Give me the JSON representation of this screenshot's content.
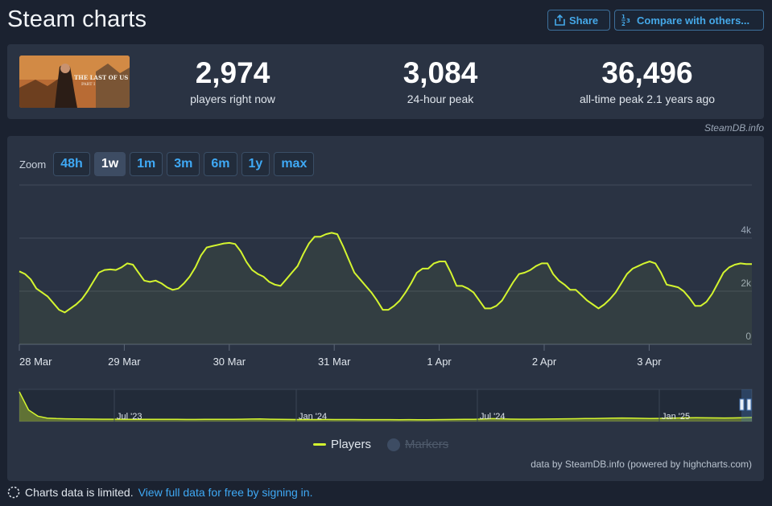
{
  "header": {
    "title": "Steam charts",
    "share_label": "Share",
    "compare_label": "Compare with others..."
  },
  "stats": [
    {
      "value": "2,974",
      "label": "players right now"
    },
    {
      "value": "3,084",
      "label": "24-hour peak"
    },
    {
      "value": "36,496",
      "label": "all-time peak 2.1 years ago"
    }
  ],
  "credit": "SteamDB.info",
  "zoom": {
    "label": "Zoom",
    "options": [
      "48h",
      "1w",
      "1m",
      "3m",
      "6m",
      "1y",
      "max"
    ],
    "active": "1w"
  },
  "legend": {
    "players": "Players",
    "markers": "Markers"
  },
  "powered_by": "data by SteamDB.info (powered by highcharts.com)",
  "footer": {
    "notice": "Charts data is limited.",
    "link": "View full data for free by signing in."
  },
  "colors": {
    "series": "#d4f52f",
    "accent": "#3fa9f5",
    "panel": "#2a3343",
    "background": "#1b2230"
  },
  "icons": {
    "share": "share-icon",
    "compare": "compare-icon",
    "limited": "dashed-circle-icon"
  },
  "chart_data": [
    {
      "type": "area",
      "series": [
        {
          "name": "Players",
          "values": [
            2750,
            2650,
            2450,
            2100,
            1950,
            1800,
            1550,
            1300,
            1200,
            1350,
            1500,
            1700,
            2000,
            2350,
            2700,
            2800,
            2820,
            2800,
            2900,
            3050,
            3000,
            2700,
            2400,
            2350,
            2400,
            2300,
            2150,
            2050,
            2100,
            2300,
            2550,
            2900,
            3350,
            3650,
            3700,
            3750,
            3800,
            3820,
            3780,
            3500,
            3100,
            2800,
            2650,
            2550,
            2350,
            2250,
            2200,
            2450,
            2700,
            2950,
            3400,
            3800,
            4050,
            4050,
            4150,
            4200,
            4150,
            3700,
            3200,
            2700,
            2450,
            2200,
            1950,
            1650,
            1300,
            1300,
            1450,
            1650,
            1950,
            2300,
            2700,
            2850,
            2850,
            3050,
            3120,
            3120,
            2700,
            2200,
            2200,
            2100,
            1950,
            1650,
            1350,
            1350,
            1450,
            1650,
            2000,
            2350,
            2650,
            2700,
            2800,
            2950,
            3050,
            3050,
            2650,
            2400,
            2250,
            2050,
            2050,
            1850,
            1650,
            1500,
            1350,
            1500,
            1700,
            1950,
            2300,
            2650,
            2850,
            2950,
            3050,
            3120,
            3050,
            2700,
            2250,
            2200,
            2150,
            2000,
            1750,
            1450,
            1450,
            1600,
            1900,
            2300,
            2700,
            2900,
            3000,
            3050,
            3020,
            3020
          ]
        }
      ],
      "x_labels": [
        "28 Mar",
        "29 Mar",
        "30 Mar",
        "31 Mar",
        "1 Apr",
        "2 Apr",
        "3 Apr"
      ],
      "y_ticks": [
        "0",
        "2k",
        "4k"
      ],
      "ylim": [
        0,
        6000
      ]
    },
    {
      "type": "area",
      "series": [
        {
          "name": "Players",
          "values": [
            36000,
            14000,
            6500,
            4200,
            3600,
            3300,
            3100,
            3000,
            2900,
            2850,
            2800,
            2780,
            2750,
            2700,
            2700,
            2650,
            2600,
            2600,
            2550,
            2500,
            2600,
            2650,
            2700,
            2750,
            2800,
            3000,
            3200,
            2800,
            2600,
            2500,
            2450,
            2400,
            2450,
            2500,
            2450,
            2400,
            2400,
            2350,
            2300,
            2350,
            2300,
            2250,
            2300,
            2250,
            2200,
            2300,
            2400,
            2500,
            2600,
            2700,
            3000,
            3500,
            3300,
            2900,
            2800,
            2800,
            2900,
            3000,
            3100,
            3300,
            3400,
            3600,
            3700,
            3900,
            4100,
            4300,
            4200,
            3900,
            3700,
            3800,
            4000,
            4300,
            4500,
            4600,
            4500,
            4400,
            4300,
            4400,
            4600,
            5000
          ]
        }
      ],
      "x_labels": [
        "Jul '23",
        "Jan '24",
        "Jul '24",
        "Jan '25"
      ]
    }
  ]
}
